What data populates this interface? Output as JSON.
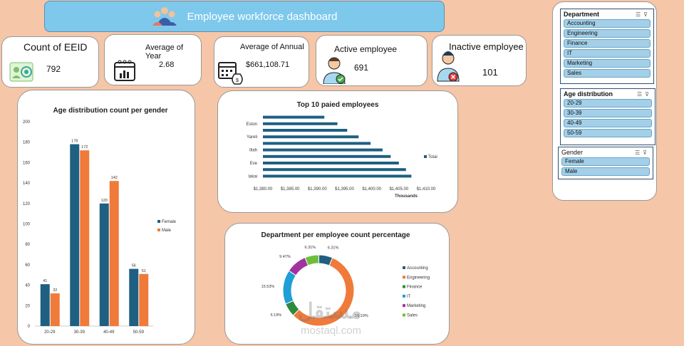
{
  "header": {
    "title": "Employee workforce dashboard"
  },
  "kpis": {
    "count_label": "Count of EEID",
    "count_value": "792",
    "year_label": "Average of Year",
    "year_value": "2.68",
    "annual_label": "Average of Annual",
    "annual_value": "$661,108.71",
    "active_label": "Active employee",
    "active_value": "691",
    "inactive_label": "Inactive employee",
    "inactive_value": "101"
  },
  "colors": {
    "female": "#1f5f82",
    "male": "#f07a3a",
    "accent": "#7ec8ec"
  },
  "chart_data": [
    {
      "type": "bar",
      "title": "Age distribution count per gender",
      "categories": [
        "20-29",
        "30-39",
        "40-49",
        "50-59"
      ],
      "series": [
        {
          "name": "Female",
          "values": [
            41,
            178,
            120,
            56
          ]
        },
        {
          "name": "Male",
          "values": [
            32,
            172,
            142,
            51
          ]
        }
      ],
      "ylim": [
        0,
        200
      ],
      "yticks": [
        "0",
        "20",
        "40",
        "60",
        "80",
        "100",
        "120",
        "140",
        "160",
        "180",
        "200"
      ],
      "legend": "right"
    },
    {
      "type": "bar",
      "orientation": "horizontal",
      "title": "Top 10 paied employees",
      "categories": [
        "Iakai",
        "",
        "Eve",
        "",
        "Iliah",
        "",
        "Yareli",
        "",
        "Eston",
        ""
      ],
      "values": [
        1407.3,
        1406.3,
        1405.0,
        1403.5,
        1402.0,
        1399.8,
        1397.6,
        1395.5,
        1393.7,
        1391.3
      ],
      "xlim": [
        1380,
        1410
      ],
      "xticks": [
        "$1,380.00",
        "$1,385.00",
        "$1,390.00",
        "$1,395.00",
        "$1,400.00",
        "$1,405.00",
        "$1,410.00"
      ],
      "xlabel": "Thousands",
      "legend_label": "Total"
    },
    {
      "type": "pie",
      "title": "Department per employee count percentage",
      "labels": [
        "Accounting",
        "Engineering",
        "Finance",
        "IT",
        "Marketing",
        "Sales"
      ],
      "values": [
        6.31,
        56.19,
        6.19,
        15.53,
        9.47,
        6.31
      ],
      "value_labels": [
        "6.31%",
        "56.19%",
        "6.19%",
        "15.53%",
        "9.47%",
        "6.31%"
      ],
      "colors": [
        "#1f5f82",
        "#f07a3a",
        "#2e8b3e",
        "#1e9fd6",
        "#a1339e",
        "#6cbf3a"
      ]
    }
  ],
  "slicers": {
    "department": {
      "title": "Department",
      "items": [
        "Accounting",
        "Engineering",
        "Finance",
        "IT",
        "Marketing",
        "Sales"
      ]
    },
    "age": {
      "title": "Age distribution",
      "items": [
        "20-29",
        "30-39",
        "40-49",
        "50-59"
      ]
    },
    "gender": {
      "title": "Gender",
      "items": [
        "Female",
        "Male"
      ]
    }
  },
  "watermark": {
    "arabic": "مستقل",
    "latin": "mostaql.com"
  }
}
